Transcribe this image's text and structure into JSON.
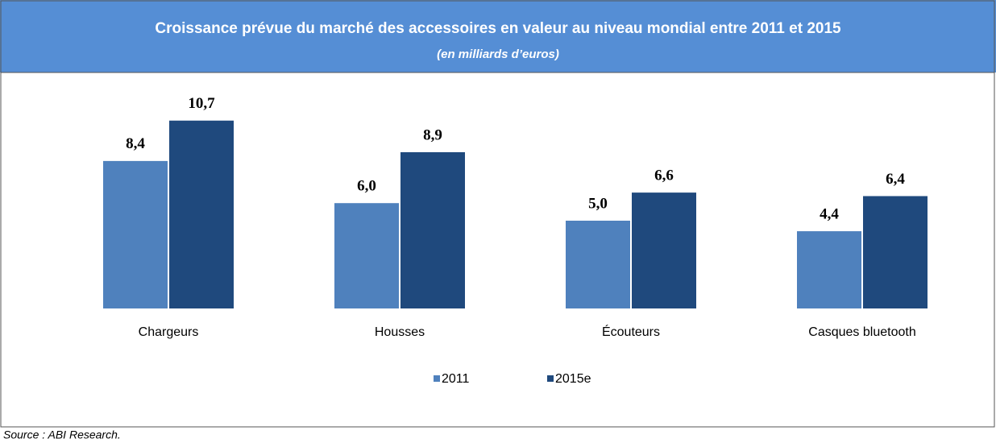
{
  "chart_data": {
    "type": "bar",
    "title": "Croissance prévue du marché des accessoires en valeur au niveau mondial entre 2011 et 2015",
    "subtitle": "(en milliards d’euros)",
    "categories": [
      "Chargeurs",
      "Housses",
      "Écouteurs",
      "Casques bluetooth"
    ],
    "series": [
      {
        "name": "2011",
        "color": "#4f81bd",
        "values": [
          8.4,
          6.0,
          5.0,
          4.4
        ],
        "value_labels": [
          "8,4",
          "6,0",
          "5,0",
          "4,4"
        ]
      },
      {
        "name": "2015e",
        "color": "#1f497d",
        "values": [
          10.7,
          8.9,
          6.6,
          6.4
        ],
        "value_labels": [
          "10,7",
          "8,9",
          "6,6",
          "6,4"
        ]
      }
    ],
    "legend": "bottom",
    "source": "Source : ABI Research."
  }
}
